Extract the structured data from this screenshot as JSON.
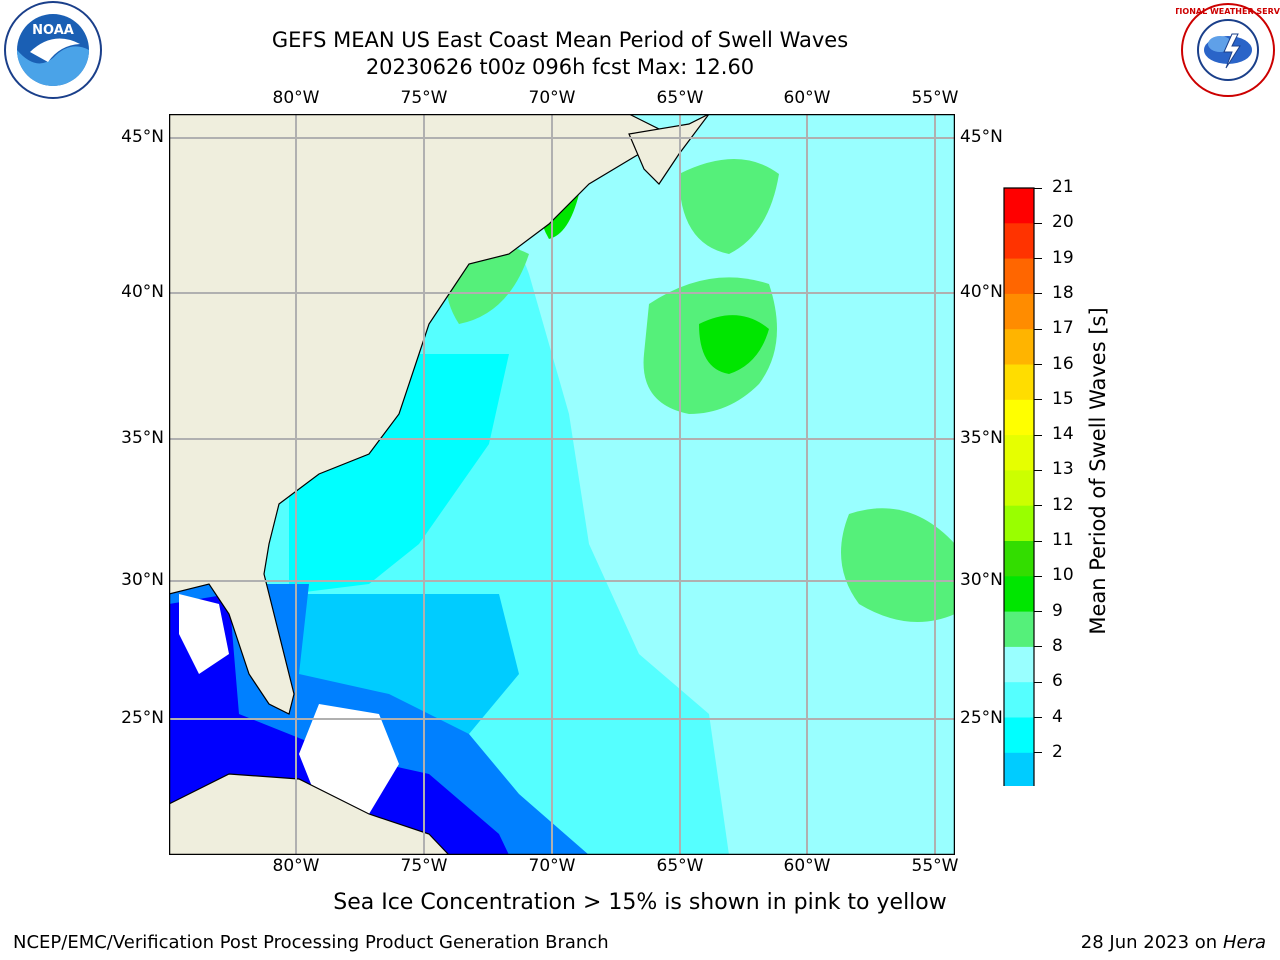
{
  "header": {
    "title_line1": "GEFS MEAN US East Coast Mean Period of Swell Waves",
    "title_line2": "20230626 t00z 096h fcst   Max: 12.60"
  },
  "logos": {
    "noaa_text": "NOAA",
    "nws_text": "NATIONAL WEATHER SERVICE"
  },
  "map": {
    "lon_labels": [
      "80°W",
      "75°W",
      "70°W",
      "65°W",
      "60°W",
      "55°W"
    ],
    "lat_labels": [
      "45°N",
      "40°N",
      "35°N",
      "30°N",
      "25°N"
    ],
    "land_color": "#efeedd",
    "grid_color": "#b0b0b0"
  },
  "colorbar": {
    "label": "Mean Period of Swell Waves [s]",
    "ticks": [
      "21",
      "20",
      "19",
      "18",
      "17",
      "16",
      "15",
      "14",
      "13",
      "12",
      "11",
      "10",
      "9",
      "8",
      "6",
      "4",
      "2"
    ],
    "colors": [
      "#ff0000",
      "#ff3300",
      "#ff6600",
      "#ff8c00",
      "#ffb400",
      "#ffdd00",
      "#ffff00",
      "#e6ff00",
      "#ccff00",
      "#99ff00",
      "#33dd00",
      "#00e600",
      "#55f07a",
      "#99ffff",
      "#55ffff",
      "#00ffff",
      "#00ccff",
      "#0080ff",
      "#0000ff"
    ]
  },
  "footer": {
    "note": "Sea Ice Concentration > 15% is shown in pink to yellow",
    "left": "NCEP/EMC/Verification Post Processing Product Generation Branch",
    "date": "28 Jun 2023 on",
    "machine": "Hera"
  }
}
